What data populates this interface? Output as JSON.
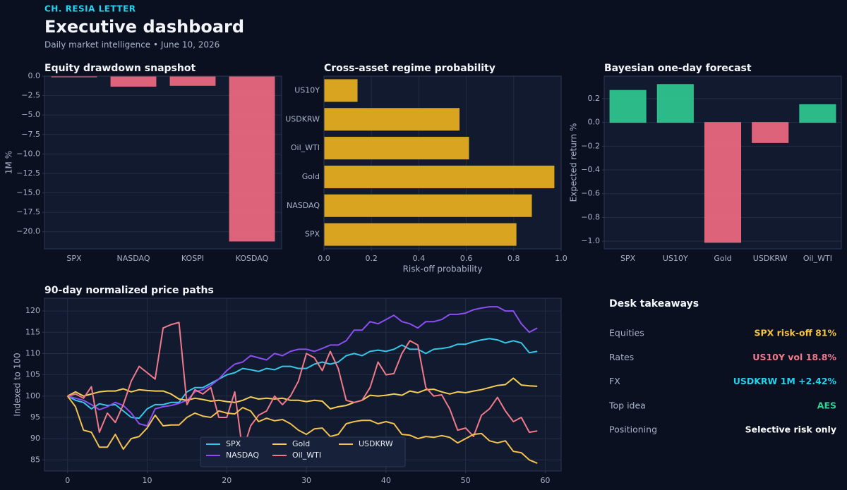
{
  "header": {
    "brand": "CH. RESIA LETTER",
    "title": "Executive dashboard",
    "subtitle": "Daily market intelligence • June 10, 2026"
  },
  "chart_data": [
    {
      "type": "bar",
      "title": "Equity drawdown snapshot",
      "ylabel": "1M %",
      "categories": [
        "SPX",
        "NASDAQ",
        "KOSPI",
        "KOSDAQ"
      ],
      "values": [
        -0.1,
        -1.3,
        -1.2,
        -21.2
      ],
      "color": "#e8677e",
      "ylim": [
        -22.2,
        0
      ],
      "yticks": [
        {
          "value": 0,
          "label": "0.0"
        },
        {
          "value": -2.5,
          "label": "−2.5"
        },
        {
          "value": -5,
          "label": "−5.0"
        },
        {
          "value": -7.5,
          "label": "−7.5"
        },
        {
          "value": -10,
          "label": "−10.0"
        },
        {
          "value": -12.5,
          "label": "−12.5"
        },
        {
          "value": -15,
          "label": "−15.0"
        },
        {
          "value": -17.5,
          "label": "−17.5"
        },
        {
          "value": -20,
          "label": "−20.0"
        }
      ],
      "grid": true
    },
    {
      "type": "barh",
      "title": "Cross-asset regime probability",
      "xlabel": "Risk-off probability",
      "categories": [
        "SPX",
        "NASDAQ",
        "Gold",
        "Oil_WTI",
        "USDKRW",
        "US10Y"
      ],
      "values": [
        0.81,
        0.875,
        0.97,
        0.61,
        0.57,
        0.14
      ],
      "color": "#d9a521",
      "xlim": [
        0,
        1
      ],
      "xticks": [
        {
          "value": 0,
          "label": "0.0"
        },
        {
          "value": 0.2,
          "label": "0.2"
        },
        {
          "value": 0.4,
          "label": "0.4"
        },
        {
          "value": 0.6,
          "label": "0.6"
        },
        {
          "value": 0.8,
          "label": "0.8"
        },
        {
          "value": 1,
          "label": "1.0"
        }
      ],
      "grid": true
    },
    {
      "type": "bar",
      "title": "Bayesian one-day forecast",
      "ylabel": "Expected return %",
      "categories": [
        "SPX",
        "US10Y",
        "Gold",
        "USDKRW",
        "Oil_WTI"
      ],
      "values": [
        0.27,
        0.32,
        -1.01,
        -0.17,
        0.15
      ],
      "colors": [
        "#2ec48d",
        "#2ec48d",
        "#e8677e",
        "#e8677e",
        "#2ec48d"
      ],
      "ylim": [
        -1.065,
        0.39
      ],
      "yticks": [
        {
          "value": 0.2,
          "label": "0.2"
        },
        {
          "value": 0,
          "label": "0.0"
        },
        {
          "value": -0.2,
          "label": "−0.2"
        },
        {
          "value": -0.4,
          "label": "−0.4"
        },
        {
          "value": -0.6,
          "label": "−0.6"
        },
        {
          "value": -0.8,
          "label": "−0.8"
        },
        {
          "value": -1,
          "label": "−1.0"
        }
      ],
      "grid": true
    },
    {
      "type": "line",
      "title": "90-day normalized price paths",
      "ylabel": "Indexed to 100",
      "x": [
        0,
        1,
        2,
        3,
        4,
        5,
        6,
        7,
        8,
        9,
        10,
        11,
        12,
        13,
        14,
        15,
        16,
        17,
        18,
        19,
        20,
        21,
        22,
        23,
        24,
        25,
        26,
        27,
        28,
        29,
        30,
        31,
        32,
        33,
        34,
        35,
        36,
        37,
        38,
        39,
        40,
        41,
        42,
        43,
        44,
        45,
        46,
        47,
        48,
        49,
        50,
        51,
        52,
        53,
        54,
        55,
        56,
        57,
        58,
        59
      ],
      "series": [
        {
          "name": "SPX",
          "color": "#38c6e8",
          "values": [
            100,
            99,
            98.5,
            97,
            98.2,
            97.8,
            98,
            96.5,
            95,
            94.8,
            97,
            98,
            98,
            98.5,
            98.5,
            101,
            102,
            102,
            103,
            104,
            105,
            105.5,
            106.5,
            106.2,
            105.8,
            106.5,
            106.2,
            107,
            107,
            106.5,
            106.5,
            107.5,
            108,
            107.5,
            108,
            109.5,
            110,
            109.5,
            110.5,
            110.8,
            110.5,
            111,
            112,
            111,
            111,
            110,
            111,
            111.2,
            111.5,
            112.2,
            112.2,
            112.8,
            113.2,
            113.5,
            113.2,
            112.5,
            113,
            112.5,
            110.2,
            110.5
          ]
        },
        {
          "name": "NASDAQ",
          "color": "#8b4ff0",
          "values": [
            100,
            99.5,
            99,
            98,
            96.8,
            97.5,
            98.5,
            97.8,
            96,
            93.5,
            93,
            97,
            97.5,
            97.8,
            98.3,
            99,
            101,
            101.5,
            102.5,
            104,
            106,
            107.5,
            108,
            109.5,
            109,
            108.5,
            110,
            109.5,
            110.5,
            111,
            111,
            110.5,
            111.2,
            112,
            112,
            113,
            115.5,
            115.5,
            117.5,
            117,
            118,
            119,
            117.5,
            117,
            116,
            117.5,
            117.5,
            118,
            119.2,
            119.2,
            119.5,
            120.3,
            120.7,
            121,
            121,
            120,
            120,
            117,
            115,
            116
          ]
        },
        {
          "name": "Gold",
          "color": "#f5cf55",
          "values": [
            100,
            101,
            100,
            100.5,
            101,
            101.2,
            101.2,
            101.7,
            101,
            101.5,
            101.3,
            101.2,
            101.2,
            100.5,
            99.3,
            99,
            99.5,
            99.2,
            98.8,
            99,
            98.7,
            98.5,
            99,
            99.8,
            99.3,
            99.5,
            99.3,
            99.5,
            99,
            99,
            98.7,
            99,
            98.8,
            97,
            97.5,
            97.8,
            98.5,
            99,
            100.2,
            100,
            100.2,
            100.5,
            100.2,
            101.2,
            100.8,
            101.5,
            101.6,
            101,
            100.5,
            101,
            100.8,
            101.2,
            101.5,
            102,
            102.5,
            102.7,
            104.2,
            102.6,
            102.4,
            102.3
          ]
        },
        {
          "name": "Oil_WTI",
          "color": "#f07a8a",
          "values": [
            100,
            100.5,
            99.5,
            102.2,
            91.5,
            96,
            93.8,
            98,
            103.5,
            107,
            105.5,
            104,
            116,
            116.8,
            117.3,
            98,
            101.5,
            100.5,
            102,
            95,
            95,
            101,
            87,
            93,
            95.5,
            96.5,
            100,
            98,
            100,
            103.5,
            110,
            109,
            106,
            110.5,
            106.5,
            99,
            98.5,
            99,
            102,
            108,
            105,
            105.3,
            110,
            113,
            112,
            102,
            100,
            100.3,
            97,
            92,
            92.5,
            90.5,
            95.5,
            97,
            99.7,
            96.5,
            94,
            95,
            91.5,
            91.8
          ]
        },
        {
          "name": "USDKRW",
          "color": "#f2c14e",
          "values": [
            100,
            97.5,
            92,
            91.5,
            88,
            88,
            91,
            87.5,
            90,
            90.5,
            92.5,
            95.5,
            93,
            93.2,
            93.2,
            95,
            96,
            95.3,
            95,
            96.5,
            96,
            95.8,
            97.3,
            96.5,
            94,
            94.8,
            94.2,
            94.5,
            93.5,
            92,
            91,
            92.3,
            92.5,
            90.5,
            91,
            93.5,
            94,
            94.3,
            94.3,
            93.5,
            94,
            93.5,
            91,
            90.8,
            90,
            90.5,
            90.3,
            90.7,
            90.3,
            89,
            90,
            91,
            91.2,
            89.5,
            89,
            89.5,
            87,
            86.7,
            85,
            84.2
          ]
        }
      ],
      "xlim": [
        -2.9,
        62
      ],
      "xticks": [
        0,
        10,
        20,
        30,
        40,
        50,
        60
      ],
      "ylim": [
        82.4,
        123
      ],
      "yticks": [
        85,
        90,
        95,
        100,
        105,
        110,
        115,
        120
      ],
      "grid": true,
      "legend": "lower center"
    }
  ],
  "takeaways": {
    "title": "Desk takeaways",
    "items": [
      {
        "label": "Equities",
        "value": "SPX risk-off 81%",
        "color": "#f5c542"
      },
      {
        "label": "Rates",
        "value": "US10Y vol 18.8%",
        "color": "#f07a8a"
      },
      {
        "label": "FX",
        "value": "USDKRW 1M +2.42%",
        "color": "#22d3ee"
      },
      {
        "label": "Top idea",
        "value": "AES",
        "color": "#34d399"
      },
      {
        "label": "Positioning",
        "value": "Selective risk only",
        "color": "#ffffff"
      }
    ]
  }
}
